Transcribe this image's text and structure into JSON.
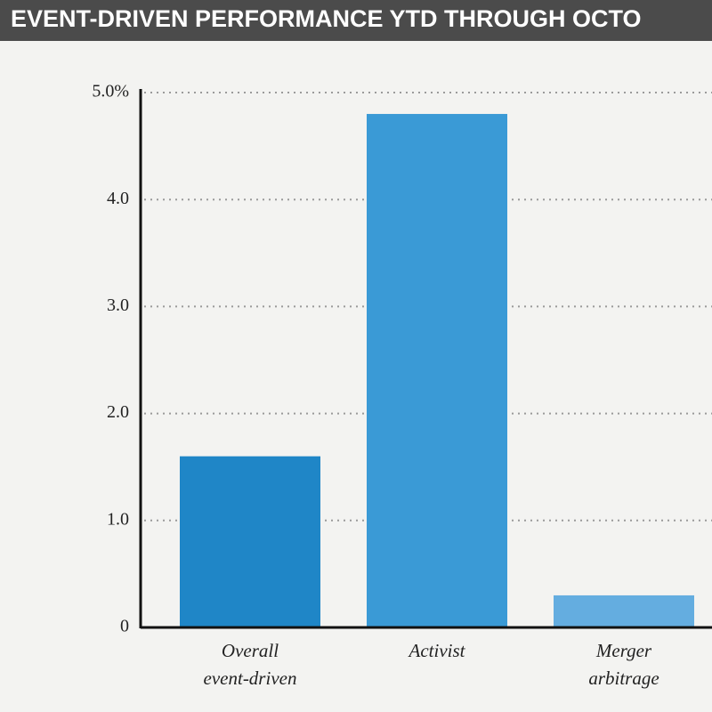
{
  "chart_data": {
    "type": "bar",
    "title": "EVENT-DRIVEN PERFORMANCE YTD THROUGH OCTO",
    "categories": [
      "Overall event-driven",
      "Activist",
      "Merger arbitrage"
    ],
    "values": [
      1.6,
      4.8,
      0.3
    ],
    "colors": [
      "#1f86c7",
      "#3a9ad6",
      "#64ade0"
    ],
    "ylim": [
      0,
      5
    ],
    "yticks": [
      0,
      {
        "value": 1,
        "label": "1.0"
      },
      {
        "value": 2,
        "label": "2.0"
      },
      {
        "value": 3,
        "label": "3.0"
      },
      {
        "value": 4,
        "label": "4.0"
      },
      {
        "value": 5,
        "label": "5.0%"
      }
    ],
    "grid": true
  }
}
